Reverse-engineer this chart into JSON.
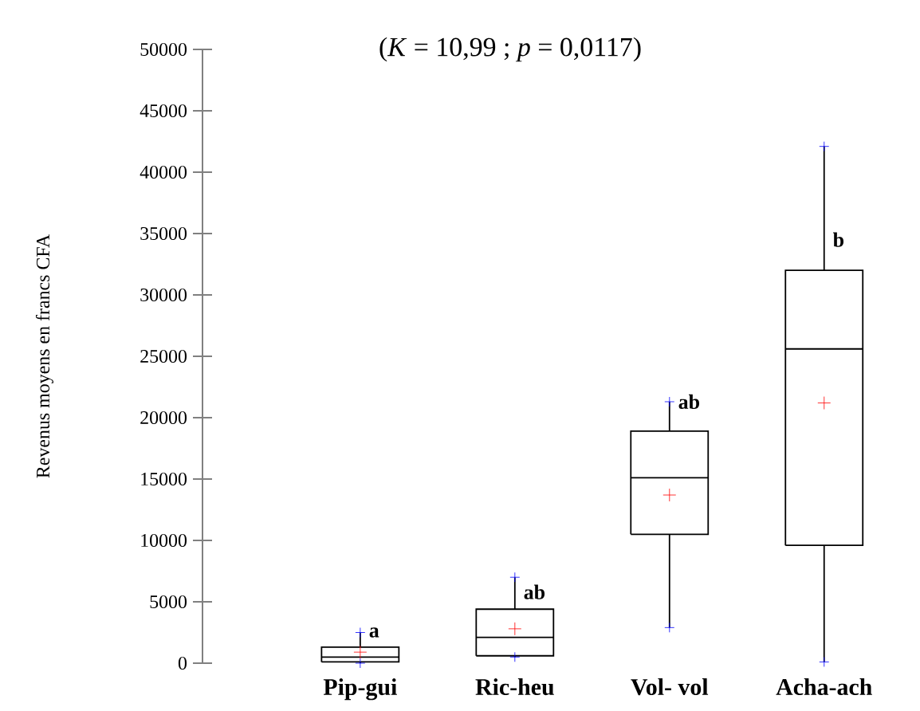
{
  "chart_data": {
    "type": "box",
    "title": "(*K* = 10,99 ; *p* = 0,0117)",
    "ylabel": "Revenus moyens en francs CFA",
    "categories": [
      "Pip-gui",
      "Ric-heu",
      "Vol- vol",
      "Acha-ach"
    ],
    "boxes": [
      {
        "low": 0,
        "q1": 100,
        "median": 500,
        "q3": 1300,
        "high": 2500,
        "mean": 900
      },
      {
        "low": 500,
        "q1": 600,
        "median": 2100,
        "q3": 4400,
        "high": 7000,
        "mean": 2800
      },
      {
        "low": 2900,
        "q1": 10500,
        "median": 15100,
        "q3": 18900,
        "high": 21300,
        "mean": 13700
      },
      {
        "low": 100,
        "q1": 9600,
        "median": 25600,
        "q3": 32000,
        "high": 42100,
        "mean": 21200
      }
    ],
    "ylim": [
      0,
      50000
    ],
    "yticks": [
      0,
      5000,
      10000,
      15000,
      20000,
      25000,
      30000,
      35000,
      40000,
      45000,
      50000
    ],
    "grid": false,
    "marker": "cross",
    "annotations": [
      {
        "text": "a",
        "x": "Pip-gui",
        "y": 2500
      },
      {
        "text": "ab",
        "x": "Ric-heu",
        "y": 5800
      },
      {
        "text": "ab",
        "x": "Vol- vol",
        "y": 21300
      },
      {
        "text": "b",
        "x": "Acha-ach",
        "y": 34500
      }
    ]
  }
}
